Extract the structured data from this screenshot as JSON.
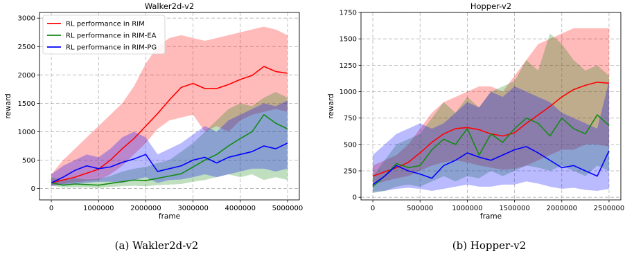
{
  "chart_data": [
    {
      "type": "line",
      "title": "Walker2d-v2",
      "xlabel": "frame",
      "ylabel": "reward",
      "xlim": [
        -250000,
        5250000
      ],
      "ylim": [
        -200,
        3100
      ],
      "xticks": [
        0,
        1000000,
        2000000,
        3000000,
        4000000,
        5000000
      ],
      "yticks": [
        0,
        500,
        1000,
        1500,
        2000,
        2500,
        3000
      ],
      "grid": true,
      "legend_position": "top-left",
      "caption": "(a)  Wakler2d-v2",
      "series": [
        {
          "name": "RL performance in RIM",
          "color": "#ff0000",
          "x": [
            0,
            250000,
            500000,
            750000,
            1000000,
            1250000,
            1500000,
            1750000,
            2000000,
            2250000,
            2500000,
            2750000,
            3000000,
            3250000,
            3500000,
            3750000,
            4000000,
            4250000,
            4500000,
            4750000,
            5000000
          ],
          "y": [
            100,
            150,
            200,
            270,
            340,
            500,
            700,
            880,
            1100,
            1320,
            1560,
            1780,
            1850,
            1760,
            1760,
            1830,
            1920,
            1990,
            2150,
            2060,
            2030
          ],
          "lower": [
            50,
            80,
            110,
            130,
            150,
            250,
            400,
            600,
            800,
            1050,
            1200,
            1250,
            1300,
            1000,
            1100,
            1000,
            1200,
            1300,
            1350,
            1400,
            1350
          ],
          "upper": [
            250,
            500,
            700,
            900,
            1100,
            1300,
            1500,
            1800,
            2200,
            2500,
            2650,
            2700,
            2650,
            2600,
            2650,
            2700,
            2750,
            2800,
            2850,
            2800,
            2700
          ]
        },
        {
          "name": "RL performance in RIM-EA",
          "color": "#138a13",
          "x": [
            0,
            250000,
            500000,
            750000,
            1000000,
            1250000,
            1500000,
            1750000,
            2000000,
            2250000,
            2500000,
            2750000,
            3000000,
            3250000,
            3500000,
            3750000,
            4000000,
            4250000,
            4500000,
            4750000,
            5000000
          ],
          "y": [
            100,
            60,
            80,
            70,
            60,
            90,
            120,
            150,
            140,
            180,
            220,
            260,
            380,
            500,
            600,
            750,
            880,
            1000,
            1300,
            1150,
            1050
          ],
          "lower": [
            50,
            20,
            20,
            20,
            10,
            30,
            40,
            50,
            40,
            60,
            70,
            80,
            120,
            150,
            200,
            250,
            200,
            250,
            150,
            200,
            150
          ],
          "upper": [
            200,
            150,
            180,
            160,
            170,
            220,
            300,
            350,
            380,
            450,
            500,
            650,
            800,
            1000,
            1200,
            1400,
            1500,
            1450,
            1600,
            1700,
            1600
          ]
        },
        {
          "name": "RL performance in RIM-PG",
          "color": "#0000ff",
          "x": [
            0,
            250000,
            500000,
            750000,
            1000000,
            1250000,
            1500000,
            1750000,
            2000000,
            2250000,
            2500000,
            2750000,
            3000000,
            3250000,
            3500000,
            3750000,
            4000000,
            4250000,
            4500000,
            4750000,
            5000000
          ],
          "y": [
            100,
            200,
            320,
            400,
            350,
            380,
            460,
            520,
            600,
            300,
            350,
            400,
            500,
            550,
            450,
            550,
            600,
            650,
            750,
            700,
            800
          ],
          "lower": [
            50,
            60,
            80,
            100,
            120,
            120,
            100,
            150,
            200,
            100,
            150,
            160,
            200,
            250,
            200,
            250,
            300,
            350,
            350,
            300,
            350
          ],
          "upper": [
            250,
            400,
            500,
            600,
            550,
            700,
            900,
            1000,
            900,
            600,
            700,
            800,
            950,
            1100,
            1000,
            1200,
            1300,
            1400,
            1500,
            1450,
            1550
          ]
        }
      ]
    },
    {
      "type": "line",
      "title": "Hopper-v2",
      "xlabel": "frame",
      "ylabel": "reward",
      "xlim": [
        -125000,
        2625000
      ],
      "ylim": [
        -25,
        1750
      ],
      "xticks": [
        0,
        500000,
        1000000,
        1500000,
        2000000,
        2500000
      ],
      "yticks": [
        0,
        250,
        500,
        750,
        1000,
        1250,
        1500,
        1750
      ],
      "grid": true,
      "legend_position": "none",
      "caption": "(b)  Hopper-v2",
      "series": [
        {
          "name": "RL performance in RIM",
          "color": "#ff0000",
          "x": [
            0,
            125000,
            250000,
            375000,
            500000,
            625000,
            750000,
            875000,
            1000000,
            1125000,
            1250000,
            1375000,
            1500000,
            1625000,
            1750000,
            1875000,
            2000000,
            2125000,
            2250000,
            2375000,
            2500000
          ],
          "y": [
            200,
            240,
            280,
            330,
            420,
            520,
            600,
            650,
            660,
            640,
            600,
            580,
            610,
            700,
            780,
            860,
            950,
            1020,
            1060,
            1090,
            1080
          ],
          "lower": [
            120,
            150,
            180,
            200,
            250,
            300,
            330,
            350,
            330,
            300,
            280,
            260,
            270,
            300,
            350,
            400,
            450,
            450,
            500,
            500,
            480
          ],
          "upper": [
            300,
            350,
            400,
            500,
            650,
            800,
            900,
            950,
            1000,
            1050,
            1050,
            1000,
            1150,
            1300,
            1450,
            1500,
            1550,
            1600,
            1600,
            1600,
            1600
          ]
        },
        {
          "name": "RL performance in RIM-EA",
          "color": "#138a13",
          "x": [
            0,
            125000,
            250000,
            375000,
            500000,
            625000,
            750000,
            875000,
            1000000,
            1125000,
            1250000,
            1375000,
            1500000,
            1625000,
            1750000,
            1875000,
            2000000,
            2125000,
            2250000,
            2375000,
            2500000
          ],
          "y": [
            100,
            200,
            320,
            280,
            300,
            450,
            550,
            500,
            650,
            400,
            600,
            520,
            650,
            750,
            700,
            580,
            750,
            650,
            600,
            780,
            680
          ],
          "lower": [
            40,
            60,
            100,
            120,
            100,
            150,
            200,
            150,
            200,
            180,
            250,
            200,
            250,
            300,
            280,
            250,
            300,
            250,
            200,
            300,
            250
          ],
          "upper": [
            200,
            350,
            500,
            550,
            600,
            750,
            900,
            800,
            950,
            850,
            1000,
            1050,
            1100,
            1300,
            1200,
            1550,
            1450,
            1300,
            1200,
            1250,
            1150
          ]
        },
        {
          "name": "RL performance in RIM-PG",
          "color": "#0000ff",
          "x": [
            0,
            125000,
            250000,
            375000,
            500000,
            625000,
            750000,
            875000,
            1000000,
            1125000,
            1250000,
            1375000,
            1500000,
            1625000,
            1750000,
            1875000,
            2000000,
            2125000,
            2250000,
            2375000,
            2500000
          ],
          "y": [
            120,
            200,
            300,
            250,
            220,
            180,
            300,
            350,
            420,
            380,
            350,
            400,
            450,
            480,
            420,
            350,
            280,
            300,
            250,
            200,
            440
          ],
          "lower": [
            50,
            60,
            80,
            90,
            80,
            60,
            80,
            100,
            120,
            100,
            100,
            120,
            120,
            150,
            130,
            100,
            80,
            90,
            70,
            60,
            80
          ],
          "upper": [
            400,
            500,
            600,
            650,
            700,
            650,
            700,
            800,
            900,
            850,
            1000,
            950,
            1050,
            1000,
            950,
            900,
            800,
            750,
            700,
            650,
            1100
          ]
        }
      ]
    }
  ]
}
